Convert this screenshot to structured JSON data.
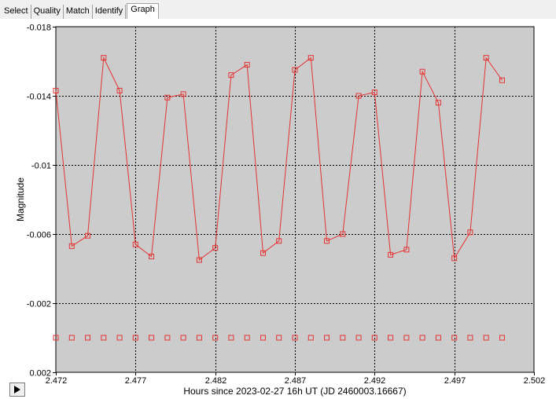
{
  "tabs": [
    {
      "label": "Select"
    },
    {
      "label": "Quality"
    },
    {
      "label": "Match"
    },
    {
      "label": "Identify"
    },
    {
      "label": "Graph",
      "active": true
    }
  ],
  "controls": {
    "play_icon": "play-icon"
  },
  "colors": {
    "series": "#e53232",
    "plot_bg": "#cccccc"
  },
  "chart_data": {
    "type": "scatter",
    "xlabel": "Hours since 2023-02-27 16h UT (JD 2460003.16667)",
    "ylabel": "Magnitude",
    "xlim": [
      2.472,
      2.502
    ],
    "ylim": [
      0.002,
      -0.018
    ],
    "y_inverted": true,
    "grid": true,
    "x_ticks": [
      2.472,
      2.477,
      2.482,
      2.487,
      2.492,
      2.497,
      2.502
    ],
    "x_tick_labels": [
      "2.472",
      "2.477",
      "2.482",
      "2.487",
      "2.492",
      "2.497",
      "2.502"
    ],
    "y_ticks": [
      -0.018,
      -0.014,
      -0.01,
      -0.006,
      -0.002,
      0.002
    ],
    "y_tick_labels": [
      "-0.018",
      "-0.014",
      "-0.01",
      "-0.006",
      "-0.002",
      "0.002"
    ],
    "series": [
      {
        "style": "line+markers",
        "x": [
          2.472,
          2.473,
          2.474,
          2.475,
          2.476,
          2.477,
          2.478,
          2.479,
          2.48,
          2.481,
          2.482,
          2.483,
          2.484,
          2.485,
          2.486,
          2.487,
          2.488,
          2.489,
          2.49,
          2.491,
          2.492,
          2.493,
          2.494,
          2.495,
          2.496,
          2.497,
          2.498,
          2.499,
          2.5
        ],
        "y": [
          -0.0143,
          -0.0053,
          -0.0059,
          -0.0162,
          -0.0143,
          -0.0054,
          -0.0047,
          -0.0139,
          -0.0141,
          -0.0045,
          -0.0052,
          -0.0152,
          -0.0158,
          -0.0049,
          -0.0056,
          -0.0155,
          -0.0162,
          -0.0056,
          -0.006,
          -0.014,
          -0.0142,
          -0.0048,
          -0.0051,
          -0.0154,
          -0.0136,
          -0.0046,
          -0.0061,
          -0.0162,
          -0.0149
        ]
      },
      {
        "style": "markers",
        "x": [
          2.472,
          2.473,
          2.474,
          2.475,
          2.476,
          2.477,
          2.478,
          2.479,
          2.48,
          2.481,
          2.482,
          2.483,
          2.484,
          2.485,
          2.486,
          2.487,
          2.488,
          2.489,
          2.49,
          2.491,
          2.492,
          2.493,
          2.494,
          2.495,
          2.496,
          2.497,
          2.498,
          2.499,
          2.5
        ],
        "y": [
          0.0,
          0.0,
          0.0,
          0.0,
          0.0,
          0.0,
          0.0,
          0.0,
          0.0,
          0.0,
          0.0,
          0.0,
          0.0,
          0.0,
          0.0,
          0.0,
          0.0,
          0.0,
          0.0,
          0.0,
          0.0,
          0.0,
          0.0,
          0.0,
          0.0,
          0.0,
          0.0,
          0.0,
          0.0
        ]
      }
    ]
  }
}
